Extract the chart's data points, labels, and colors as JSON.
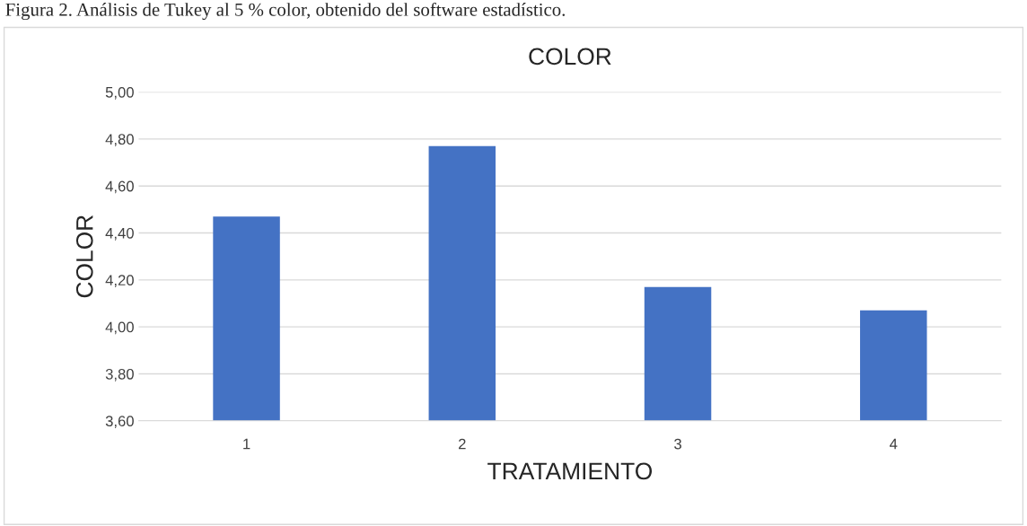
{
  "chart_data": {
    "type": "bar",
    "title": "COLOR",
    "xlabel": "TRATAMIENTO",
    "ylabel": "COLOR",
    "annotations": [
      "Figura 2. Análisis de Tukey al 5 % color, obtenido del software estadístico."
    ],
    "categories": [
      "1",
      "2",
      "3",
      "4"
    ],
    "values": [
      4.47,
      4.77,
      4.17,
      4.07
    ],
    "color": "#4472c4",
    "ylim": [
      3.6,
      5.0
    ],
    "yticks": [
      {
        "value": 3.6,
        "label": "3,60"
      },
      {
        "value": 3.8,
        "label": "3,80"
      },
      {
        "value": 4.0,
        "label": "4,00"
      },
      {
        "value": 4.2,
        "label": "4,20"
      },
      {
        "value": 4.4,
        "label": "4,40"
      },
      {
        "value": 4.6,
        "label": "4,60"
      },
      {
        "value": 4.8,
        "label": "4,80"
      },
      {
        "value": 5.0,
        "label": "5,00"
      }
    ],
    "grid": "y"
  }
}
